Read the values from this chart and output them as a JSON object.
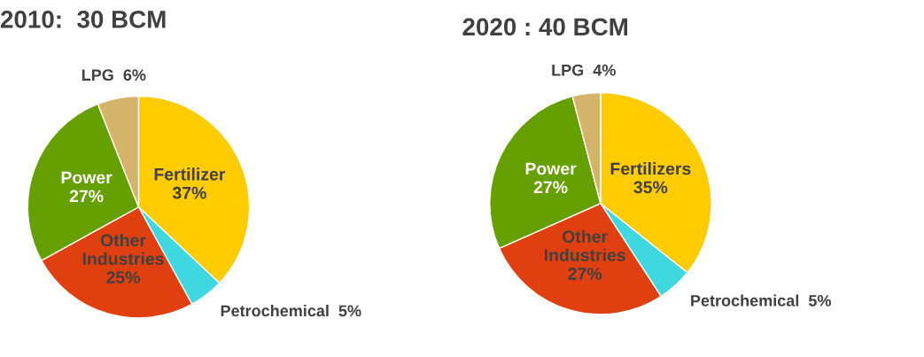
{
  "chart_data": [
    {
      "type": "pie",
      "title": "2010:  30 BCM",
      "categories": [
        "Fertilizer",
        "Petrochemical",
        "Other Industries",
        "Power",
        "LPG"
      ],
      "values": [
        37,
        5,
        25,
        27,
        6
      ],
      "value_labels": [
        "37%",
        "5%",
        "25%",
        "27%",
        "6%"
      ],
      "colors": [
        "#ffcc00",
        "#40d8e0",
        "#e04010",
        "#66a000",
        "#d4b46a"
      ]
    },
    {
      "type": "pie",
      "title": "2020 : 40 BCM",
      "categories": [
        "Fertilizers",
        "Petrochemical",
        "Other Industries",
        "Power",
        "LPG"
      ],
      "values": [
        35,
        5,
        27,
        27,
        4
      ],
      "value_labels": [
        "35%",
        "5%",
        "27%",
        "27%",
        "4%"
      ],
      "colors": [
        "#ffcc00",
        "#40d8e0",
        "#e04010",
        "#66a000",
        "#d4b46a"
      ]
    }
  ]
}
